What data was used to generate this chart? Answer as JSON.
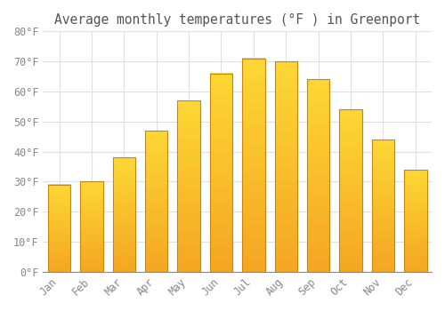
{
  "months": [
    "Jan",
    "Feb",
    "Mar",
    "Apr",
    "May",
    "Jun",
    "Jul",
    "Aug",
    "Sep",
    "Oct",
    "Nov",
    "Dec"
  ],
  "values": [
    29,
    30,
    38,
    47,
    57,
    66,
    71,
    70,
    64,
    54,
    44,
    34
  ],
  "bar_color_bottom": "#F5A623",
  "bar_color_top": "#FDD835",
  "bar_edge_color": "#C8860A",
  "title": "Average monthly temperatures (°F ) in Greenport",
  "ylim": [
    0,
    80
  ],
  "yticks": [
    0,
    10,
    20,
    30,
    40,
    50,
    60,
    70,
    80
  ],
  "ytick_labels": [
    "0°F",
    "10°F",
    "20°F",
    "30°F",
    "40°F",
    "50°F",
    "60°F",
    "70°F",
    "80°F"
  ],
  "background_color": "#FFFFFF",
  "grid_color": "#E0E0E0",
  "title_fontsize": 10.5,
  "tick_fontsize": 8.5,
  "title_color": "#555555",
  "tick_color": "#888888",
  "font_family": "monospace",
  "bar_width": 0.7
}
